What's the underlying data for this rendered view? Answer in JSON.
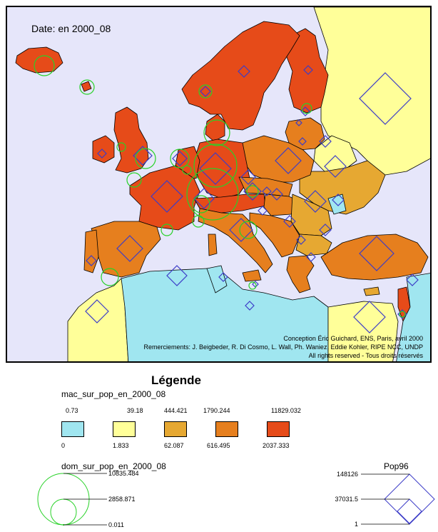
{
  "map": {
    "date_label": "Date: en 2000_08",
    "credits": [
      "Conception Éric Guichard, ENS, Paris, avril 2000",
      "Remerciements: J. Beigbeder, R. Di Cosmo, L. Wall, Ph. Waniez, Eddie Kohler, RIPE NCC, UNDP",
      "All rights reserved - Tous droits réservés"
    ],
    "colors": {
      "sea": "#e6e6fa",
      "class1": "#a0e6f0",
      "class2": "#ffff99",
      "class3": "#e6a832",
      "class4": "#e67f1e",
      "class5": "#e64b19",
      "outline": "#000000",
      "diamond": "#3c3cc8",
      "circle": "#28d228"
    }
  },
  "legend": {
    "title": "Légende",
    "choropleth": {
      "variable": "mac_sur_pop_en_2000_08",
      "upper_bounds": [
        "0.73",
        "39.18",
        "444.421",
        "1790.244",
        "11829.032"
      ],
      "lower_bounds": [
        "0",
        "1.833",
        "62.087",
        "616.495",
        "2037.333"
      ]
    },
    "circles": {
      "variable": "dom_sur_pop_en_2000_08",
      "values": [
        "10835.484",
        "2858.871",
        "0.011"
      ]
    },
    "diamonds": {
      "variable": "Pop96",
      "values": [
        "148126",
        "37031.5",
        "1"
      ]
    }
  }
}
